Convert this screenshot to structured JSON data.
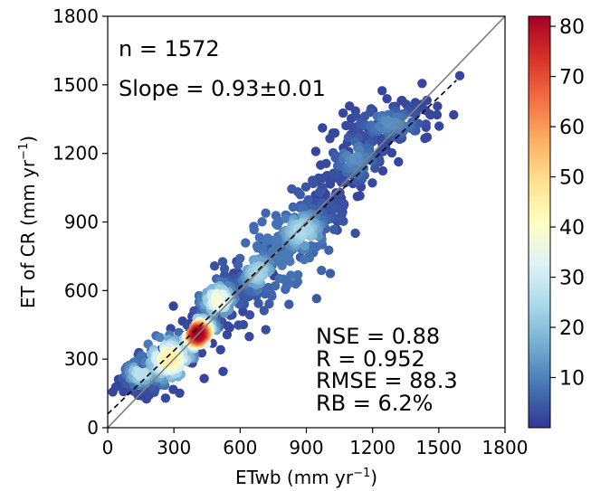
{
  "chart_data": {
    "type": "scatter",
    "title": "",
    "xlabel": "ETwb (mm yr",
    "xlabel_sup": "−1",
    "xlabel_close": ")",
    "ylabel": "ET of CR (mm yr",
    "ylabel_sup": "−1",
    "ylabel_close": ")",
    "xlim": [
      0,
      1800
    ],
    "ylim": [
      0,
      1800
    ],
    "xticks": [
      "0",
      "300",
      "600",
      "900",
      "1200",
      "1500",
      "1800"
    ],
    "yticks": [
      "0",
      "300",
      "600",
      "900",
      "1200",
      "1500",
      "1800"
    ],
    "grid": false,
    "n_text": "n = 1572",
    "slope_text": "Slope = 0.93±0.01",
    "stats": [
      "NSE = 0.88",
      "R = 0.952",
      "RMSE = 88.3",
      "RB = 6.2%"
    ],
    "one_to_one_line": {
      "x": [
        0,
        1800
      ],
      "y": [
        0,
        1800
      ],
      "color": "#808080"
    },
    "fit_line": {
      "x": [
        0,
        1580
      ],
      "y": [
        60,
        1520
      ],
      "style": "dashed",
      "color": "#000000"
    },
    "colorbar": {
      "min": 0,
      "max": 82,
      "ticks": [
        "10",
        "20",
        "30",
        "40",
        "50",
        "60",
        "70",
        "80"
      ],
      "colormap": "RdYlBu_r"
    },
    "clusters": [
      {
        "x": 410,
        "y": 410,
        "sx": 45,
        "sy": 45,
        "rho": 0.8,
        "n": 350,
        "peak": 82,
        "decay": 0.6
      },
      {
        "x": 280,
        "y": 300,
        "sx": 90,
        "sy": 80,
        "rho": 0.8,
        "n": 250,
        "peak": 45,
        "decay": 1.0
      },
      {
        "x": 500,
        "y": 560,
        "sx": 60,
        "sy": 60,
        "rho": 0.7,
        "n": 140,
        "peak": 40,
        "decay": 1.0
      },
      {
        "x": 150,
        "y": 240,
        "sx": 55,
        "sy": 45,
        "rho": 0.6,
        "n": 90,
        "peak": 28,
        "decay": 1.0
      },
      {
        "x": 680,
        "y": 680,
        "sx": 70,
        "sy": 70,
        "rho": 0.8,
        "n": 130,
        "peak": 24,
        "decay": 1.0
      },
      {
        "x": 880,
        "y": 860,
        "sx": 90,
        "sy": 80,
        "rho": 0.8,
        "n": 180,
        "peak": 25,
        "decay": 1.0
      },
      {
        "x": 1120,
        "y": 1180,
        "sx": 80,
        "sy": 80,
        "rho": 0.5,
        "n": 100,
        "peak": 12,
        "decay": 1.0
      },
      {
        "x": 1280,
        "y": 1330,
        "sx": 110,
        "sy": 50,
        "rho": 0.3,
        "n": 110,
        "peak": 12,
        "decay": 1.0
      },
      {
        "x": 800,
        "y": 780,
        "sx": 260,
        "sy": 260,
        "rho": 0.9,
        "n": 222,
        "peak": 9,
        "decay": 1.0
      }
    ]
  }
}
